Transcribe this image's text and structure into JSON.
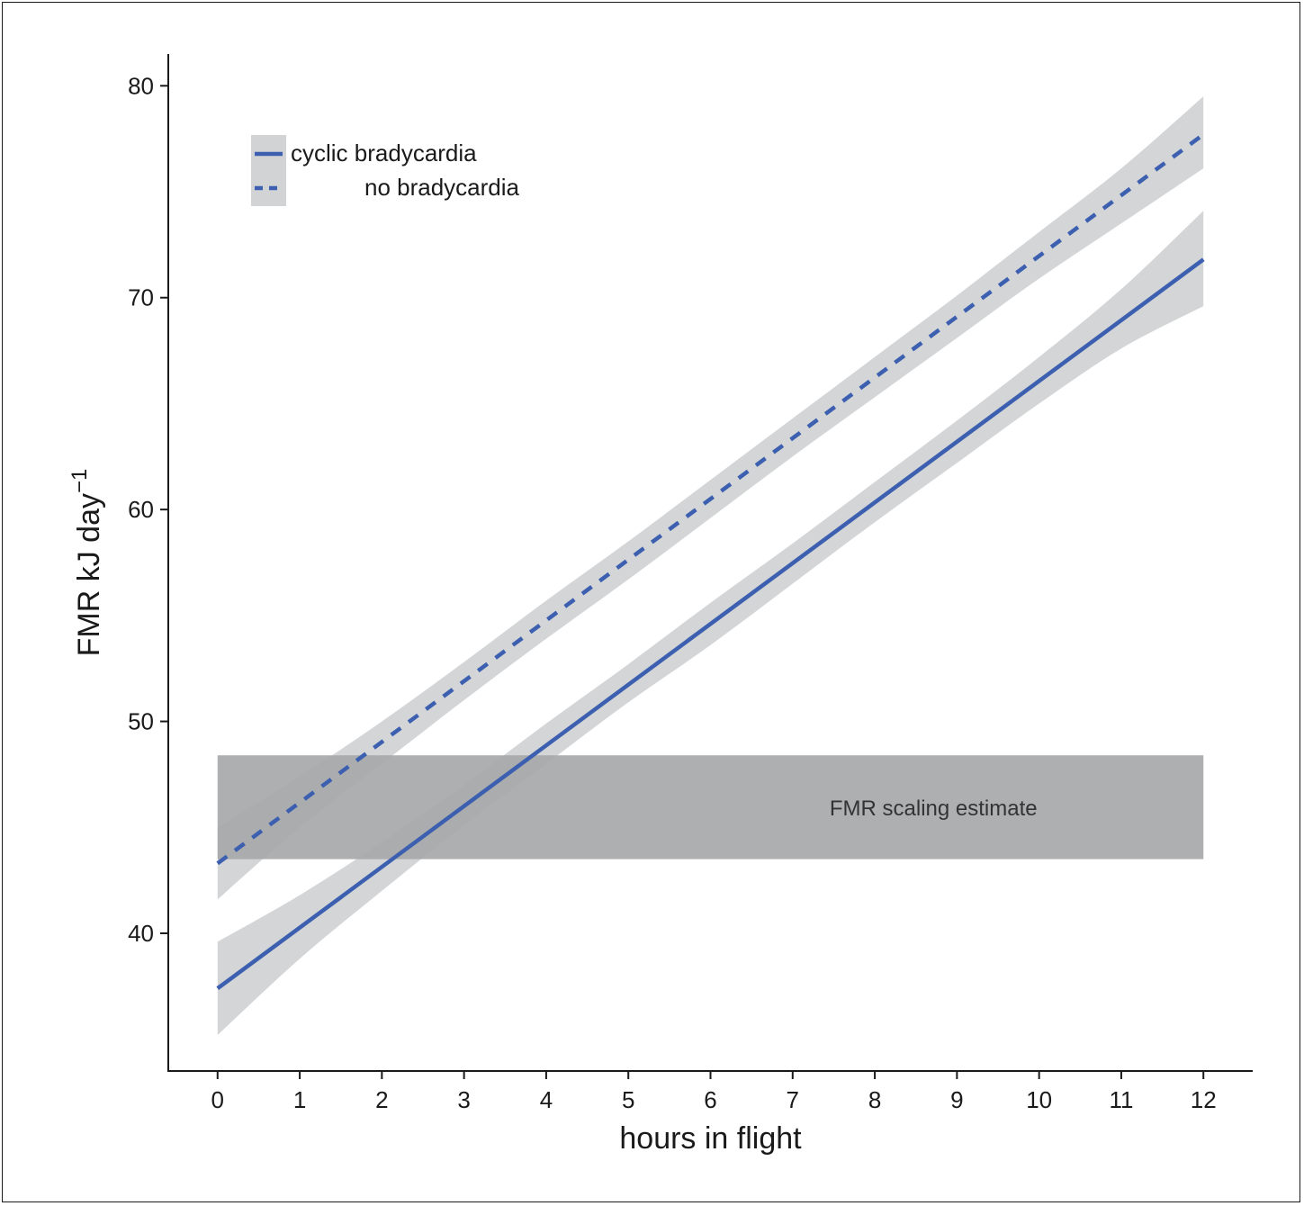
{
  "chart_data": {
    "type": "line",
    "xlabel": "hours in flight",
    "ylabel": "FMR kJ day",
    "ylabel_superscript": "−1",
    "xlim": [
      -0.6,
      12.6
    ],
    "ylim": [
      33.5,
      81.5
    ],
    "xticks": [
      0,
      1,
      2,
      3,
      4,
      5,
      6,
      7,
      8,
      9,
      10,
      11,
      12
    ],
    "yticks": [
      40,
      50,
      60,
      70,
      80
    ],
    "x": [
      0,
      1,
      2,
      3,
      4,
      5,
      6,
      7,
      8,
      9,
      10,
      11,
      12
    ],
    "series": [
      {
        "name": "cyclic bradycardia",
        "line_style": "solid",
        "color": "#3c5fb0",
        "values": [
          37.4,
          40.3,
          43.1,
          46.0,
          48.9,
          51.8,
          54.6,
          57.5,
          60.4,
          63.2,
          66.1,
          69.0,
          71.8
        ],
        "ci_lower": [
          35.2,
          38.8,
          42.0,
          45.1,
          48.0,
          50.9,
          53.6,
          56.5,
          59.4,
          62.2,
          65.0,
          67.6,
          69.6
        ],
        "ci_upper": [
          39.6,
          41.8,
          44.3,
          47.0,
          49.9,
          52.7,
          55.6,
          58.4,
          61.3,
          64.2,
          67.2,
          70.4,
          74.1
        ]
      },
      {
        "name": "no bradycardia",
        "line_style": "dashed",
        "color": "#3c5fb0",
        "values": [
          43.3,
          46.2,
          49.0,
          51.9,
          54.8,
          57.6,
          60.5,
          63.4,
          66.2,
          69.1,
          72.0,
          74.8,
          77.7
        ],
        "ci_lower": [
          41.6,
          45.0,
          48.0,
          51.0,
          53.9,
          56.7,
          59.6,
          62.5,
          65.3,
          68.1,
          70.9,
          73.5,
          76.1
        ],
        "ci_upper": [
          45.0,
          47.4,
          50.0,
          52.8,
          55.7,
          58.5,
          61.4,
          64.3,
          67.2,
          70.1,
          73.1,
          76.1,
          79.5
        ]
      }
    ],
    "ci_color": "#d1d3d5",
    "band": {
      "label": "FMR scaling estimate",
      "y_range": [
        43.5,
        48.4
      ],
      "x_range": [
        0,
        12
      ],
      "color": "#a7a8aa"
    },
    "legend_position": "top-left",
    "grid": false
  }
}
